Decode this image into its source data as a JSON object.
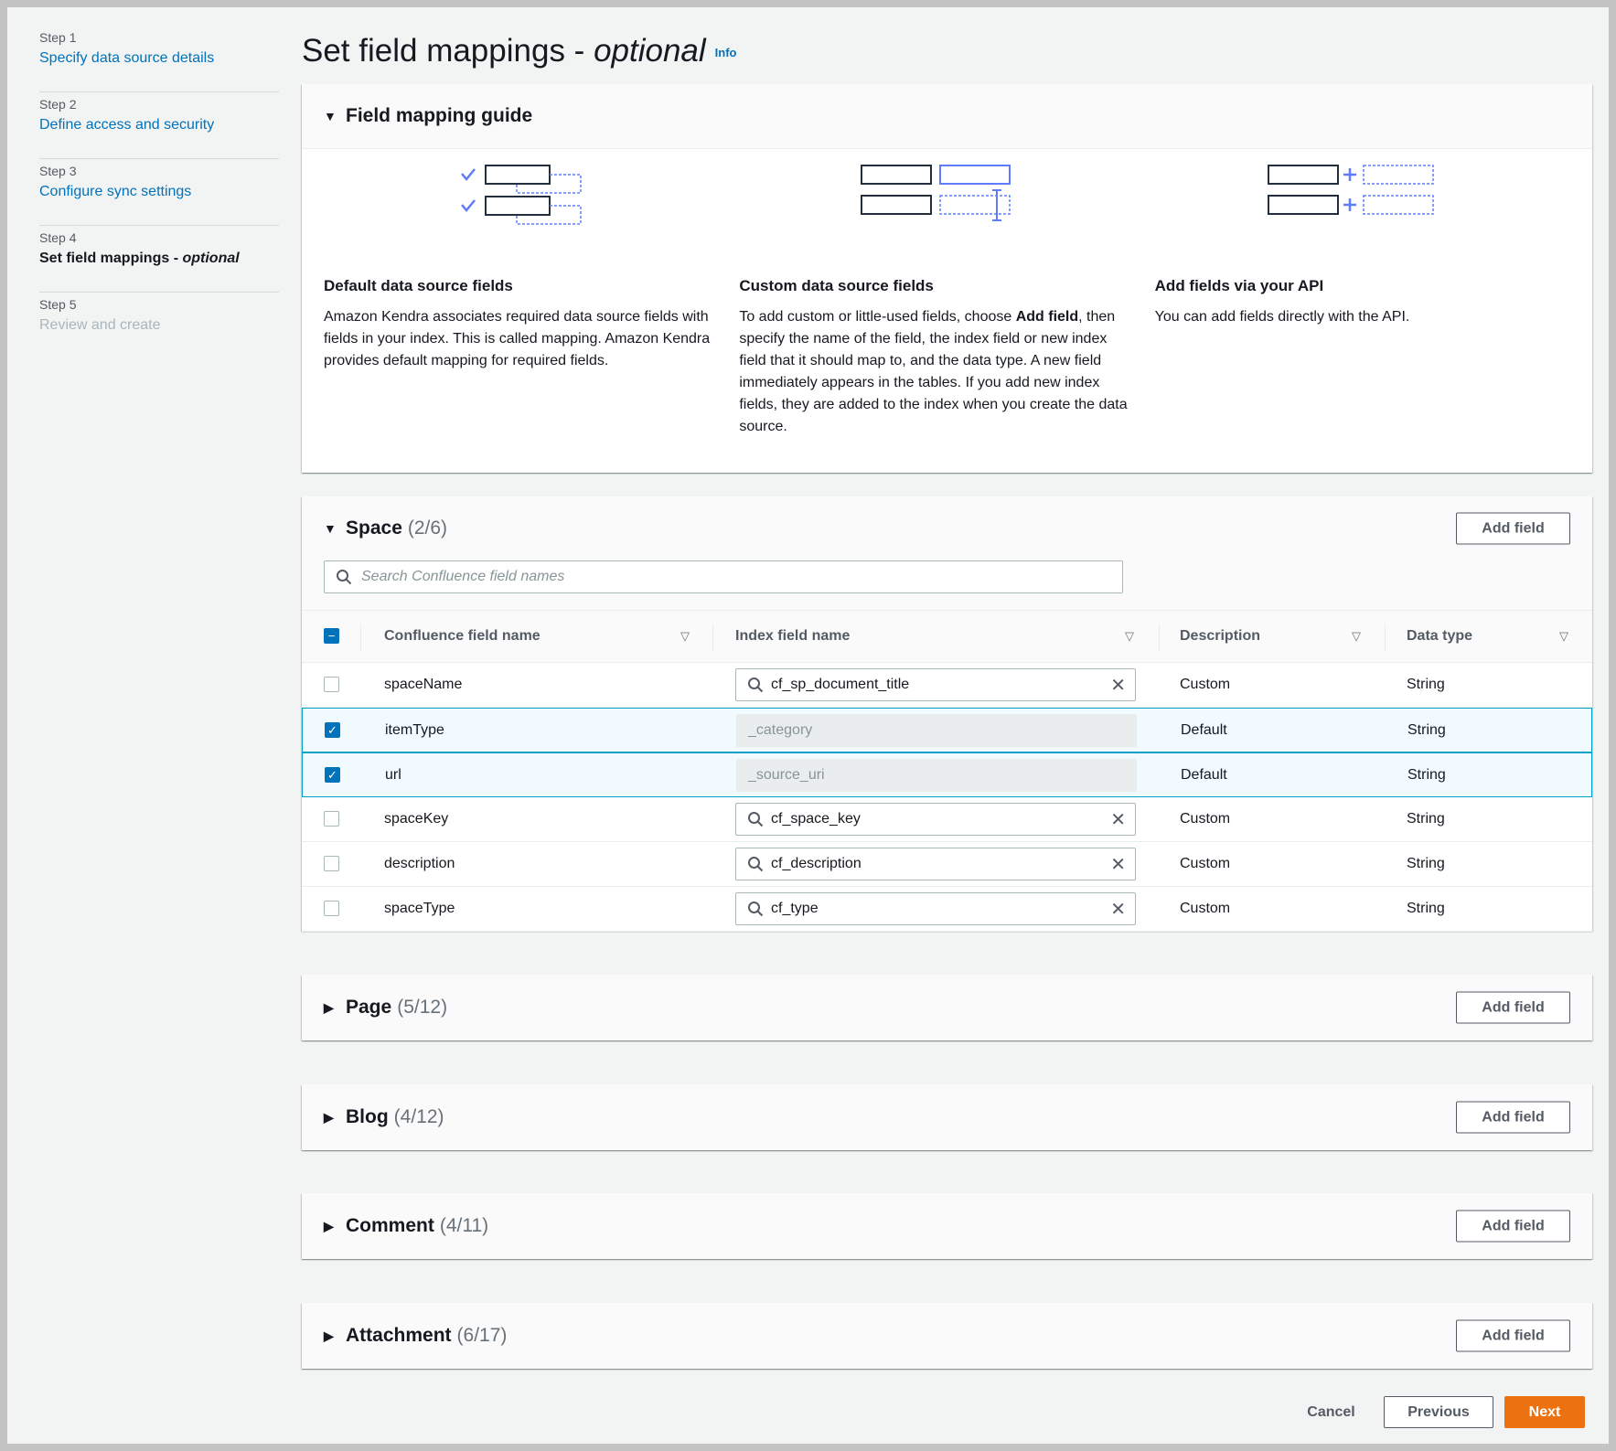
{
  "sidebar": {
    "steps": [
      {
        "num": "Step 1",
        "label": "Specify data source details",
        "state": "link"
      },
      {
        "num": "Step 2",
        "label": "Define access and security",
        "state": "link"
      },
      {
        "num": "Step 3",
        "label": "Configure sync settings",
        "state": "link"
      },
      {
        "num": "Step 4",
        "label": "Set field mappings - ",
        "label_italic": "optional",
        "state": "current"
      },
      {
        "num": "Step 5",
        "label": "Review and create",
        "state": "disabled"
      }
    ]
  },
  "header": {
    "title": "Set field mappings - ",
    "title_italic": "optional",
    "info": "Info"
  },
  "guide": {
    "title": "Field mapping guide",
    "columns": [
      {
        "icon": "default-mapping-illustration",
        "title": "Default data source fields",
        "text": "Amazon Kendra associates required data source fields with fields in your index. This is called mapping. Amazon Kendra provides default mapping for required fields."
      },
      {
        "icon": "custom-mapping-illustration",
        "title": "Custom data source fields",
        "text_before": "To add custom or little-used fields, choose ",
        "text_bold": "Add field",
        "text_after": ", then specify the name of the field, the index field or new index field that it should map to, and the data type. A new field immediately appears in the tables. If you add new index fields, they are added to the index when you create the data source."
      },
      {
        "icon": "api-add-illustration",
        "title": "Add fields via your API",
        "text": "You can add fields directly with the API."
      }
    ]
  },
  "space": {
    "title": "Space",
    "count": "(2/6)",
    "add_field": "Add field",
    "search_placeholder": "Search Confluence field names",
    "columns": [
      "Confluence field name",
      "Index field name",
      "Description",
      "Data type"
    ],
    "rows": [
      {
        "checked": false,
        "field": "spaceName",
        "index": "cf_sp_document_title",
        "editable": true,
        "description": "Custom",
        "type": "String"
      },
      {
        "checked": true,
        "field": "itemType",
        "index": "_category",
        "editable": false,
        "description": "Default",
        "type": "String"
      },
      {
        "checked": true,
        "field": "url",
        "index": "_source_uri",
        "editable": false,
        "description": "Default",
        "type": "String"
      },
      {
        "checked": false,
        "field": "spaceKey",
        "index": "cf_space_key",
        "editable": true,
        "description": "Custom",
        "type": "String"
      },
      {
        "checked": false,
        "field": "description",
        "index": "cf_description",
        "editable": true,
        "description": "Custom",
        "type": "String"
      },
      {
        "checked": false,
        "field": "spaceType",
        "index": "cf_type",
        "editable": true,
        "description": "Custom",
        "type": "String"
      }
    ]
  },
  "sections": [
    {
      "title": "Page",
      "count": "(5/12)",
      "add_field": "Add field"
    },
    {
      "title": "Blog",
      "count": "(4/12)",
      "add_field": "Add field"
    },
    {
      "title": "Comment",
      "count": "(4/11)",
      "add_field": "Add field"
    },
    {
      "title": "Attachment",
      "count": "(6/17)",
      "add_field": "Add field"
    }
  ],
  "footer": {
    "cancel": "Cancel",
    "previous": "Previous",
    "next": "Next"
  },
  "colors": {
    "accent": "#0073bb",
    "primary": "#ec7211",
    "illustration": "#5f7cff"
  }
}
